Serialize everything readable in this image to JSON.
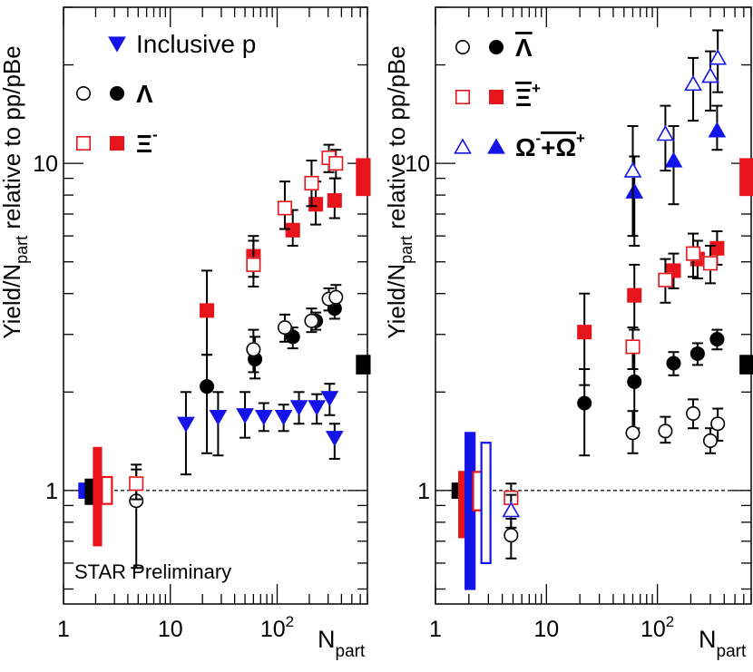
{
  "colors": {
    "black": "#000000",
    "red": "#e8141c",
    "blue": "#1414e8"
  },
  "chart_data": [
    {
      "type": "scatter",
      "id": "left",
      "xscale": "log",
      "yscale": "log",
      "xlim": [
        1,
        700
      ],
      "ylim": [
        0.45,
        30
      ],
      "ylabel_main": "Yield/N",
      "ylabel_sub": "part",
      "ylabel_rest": " relative to pp/pBe",
      "xlabel_main": "N",
      "xlabel_sub": "part",
      "x_ticks": [
        {
          "value": 1,
          "label": "1"
        },
        {
          "value": 10,
          "label": "10"
        },
        {
          "value": 100,
          "label": "10",
          "sup": "2"
        }
      ],
      "y_ticks": [
        {
          "value": 1,
          "label": "1"
        },
        {
          "value": 10,
          "label": "10"
        }
      ],
      "annotation": "STAR Preliminary",
      "legend": [
        {
          "label": "Inclusive p",
          "open_marker": null,
          "filled_marker": "tri-down",
          "color": "#1414e8",
          "overline": false,
          "sup": ""
        },
        {
          "label": "Λ",
          "open_marker": "circle",
          "filled_marker": "circle",
          "color": "#000000",
          "overline": false,
          "sup": ""
        },
        {
          "label": "Ξ",
          "open_marker": "square",
          "filled_marker": "square",
          "color": "#e8141c",
          "overline": false,
          "sup": "-"
        }
      ],
      "series": [
        {
          "name": "Inclusive p",
          "marker": "tri-down",
          "filled": true,
          "color": "#1414e8",
          "points": [
            [
              14,
              1.6,
              2.0,
              1.12
            ],
            [
              28,
              1.68,
              2.0,
              1.28
            ],
            [
              50,
              1.7,
              2.0,
              1.45
            ],
            [
              75,
              1.68,
              1.85,
              1.52
            ],
            [
              115,
              1.68,
              1.83,
              1.52
            ],
            [
              160,
              1.8,
              2.0,
              1.6
            ],
            [
              235,
              1.8,
              1.97,
              1.6
            ],
            [
              310,
              1.92,
              2.12,
              1.7
            ],
            [
              345,
              1.45,
              1.6,
              1.25
            ]
          ]
        },
        {
          "name": "Λ (filled)",
          "marker": "circle",
          "filled": true,
          "color": "#000000",
          "points": [
            [
              22,
              2.08,
              2.6,
              1.3
            ],
            [
              62,
              2.52,
              2.95,
              2.2
            ],
            [
              140,
              2.95,
              3.15,
              2.72
            ],
            [
              230,
              3.3,
              3.5,
              3.1
            ],
            [
              345,
              3.6,
              3.85,
              3.35
            ]
          ]
        },
        {
          "name": "Λ (open)",
          "marker": "circle",
          "filled": false,
          "color": "#000000",
          "points": [
            [
              4.8,
              0.93,
              1.2,
              0.58
            ],
            [
              60,
              2.7,
              3.1,
              2.3
            ],
            [
              118,
              3.15,
              3.45,
              2.85
            ],
            [
              210,
              3.3,
              3.6,
              3.05
            ],
            [
              305,
              3.85,
              4.15,
              3.55
            ],
            [
              355,
              3.9,
              4.25,
              3.6
            ]
          ]
        },
        {
          "name": "Ξ- (filled)",
          "marker": "square",
          "filled": true,
          "color": "#e8141c",
          "points": [
            [
              22,
              3.55,
              4.7,
              2.6
            ],
            [
              60,
              5.2,
              6.0,
              4.5
            ],
            [
              140,
              6.25,
              7.2,
              5.6
            ],
            [
              230,
              7.5,
              8.8,
              6.5
            ],
            [
              345,
              7.7,
              9.0,
              6.8
            ]
          ]
        },
        {
          "name": "Ξ- (open)",
          "marker": "square",
          "filled": false,
          "color": "#e8141c",
          "points": [
            [
              4.8,
              1.05,
              1.16,
              0.94
            ],
            [
              60,
              4.9,
              5.8,
              4.2
            ],
            [
              118,
              7.3,
              8.8,
              6.3
            ],
            [
              210,
              8.7,
              10.2,
              7.4
            ],
            [
              305,
              10.4,
              11.4,
              9.4
            ],
            [
              355,
              10.0,
              11.0,
              9.0
            ]
          ]
        }
      ],
      "systematics": [
        {
          "x": 1.55,
          "lo": 0.95,
          "hi": 1.05,
          "color": "#1414e8",
          "filled": true,
          "width": 1.0
        },
        {
          "x": 1.78,
          "lo": 0.91,
          "hi": 1.08,
          "color": "#000000",
          "filled": true,
          "width": 1.0
        },
        {
          "x": 2.08,
          "lo": 0.68,
          "hi": 1.35,
          "color": "#e8141c",
          "filled": true,
          "width": 0.8
        },
        {
          "x": 2.55,
          "lo": 0.91,
          "hi": 1.1,
          "color": "#e8141c",
          "filled": false,
          "width": 1.1
        },
        {
          "x": 640,
          "lo": 2.28,
          "hi": 2.58,
          "color": "#000000",
          "filled": true,
          "width": 1.4
        },
        {
          "x": 640,
          "lo": 8.0,
          "hi": 10.3,
          "color": "#e8141c",
          "filled": true,
          "width": 1.4
        }
      ]
    },
    {
      "type": "scatter",
      "id": "right",
      "xscale": "log",
      "yscale": "log",
      "xlim": [
        1,
        700
      ],
      "ylim": [
        0.45,
        30
      ],
      "ylabel_main": "Yield/N",
      "ylabel_sub": "part",
      "ylabel_rest": " relative to pp/pBe",
      "xlabel_main": "N",
      "xlabel_sub": "part",
      "x_ticks": [
        {
          "value": 1,
          "label": "1"
        },
        {
          "value": 10,
          "label": "10"
        },
        {
          "value": 100,
          "label": "10",
          "sup": "2"
        }
      ],
      "y_ticks": [
        {
          "value": 1,
          "label": "1"
        },
        {
          "value": 10,
          "label": "10"
        }
      ],
      "legend": [
        {
          "label": "Λ",
          "open_marker": "circle",
          "filled_marker": "circle",
          "color": "#000000",
          "overline": true,
          "sup": ""
        },
        {
          "label": "Ξ",
          "open_marker": "square",
          "filled_marker": "square",
          "color": "#e8141c",
          "overline": true,
          "sup": "+"
        },
        {
          "label": "Ω",
          "label2": "+Ω",
          "open_marker": "tri-up",
          "filled_marker": "tri-up",
          "color": "#1414e8",
          "overline": false,
          "sup": "-",
          "sup2": "+"
        }
      ],
      "series": [
        {
          "name": "anti-Λ (filled)",
          "marker": "circle",
          "filled": true,
          "color": "#000000",
          "points": [
            [
              22,
              1.85,
              2.35,
              1.28
            ],
            [
              62,
              2.15,
              2.8,
              1.55
            ],
            [
              140,
              2.45,
              2.65,
              2.25
            ],
            [
              230,
              2.62,
              2.82,
              2.42
            ],
            [
              345,
              2.9,
              3.1,
              2.7
            ]
          ]
        },
        {
          "name": "anti-Λ (open)",
          "marker": "circle",
          "filled": false,
          "color": "#000000",
          "points": [
            [
              4.8,
              0.73,
              0.82,
              0.62
            ],
            [
              60,
              1.5,
              1.75,
              1.3
            ],
            [
              118,
              1.52,
              1.68,
              1.4
            ],
            [
              210,
              1.72,
              1.9,
              1.55
            ],
            [
              300,
              1.42,
              1.55,
              1.3
            ],
            [
              350,
              1.6,
              1.78,
              1.42
            ]
          ]
        },
        {
          "name": "anti-Ξ+ (filled)",
          "marker": "square",
          "filled": true,
          "color": "#e8141c",
          "points": [
            [
              22,
              3.05,
              4.0,
              2.1
            ],
            [
              62,
              3.95,
              4.9,
              3.1
            ],
            [
              140,
              4.7,
              5.3,
              4.15
            ],
            [
              230,
              5.1,
              5.8,
              4.45
            ],
            [
              345,
              5.5,
              6.2,
              4.9
            ]
          ]
        },
        {
          "name": "anti-Ξ+ (open)",
          "marker": "square",
          "filled": false,
          "color": "#e8141c",
          "points": [
            [
              4.8,
              0.95,
              1.05,
              0.86
            ],
            [
              60,
              2.75,
              3.15,
              2.35
            ],
            [
              118,
              4.4,
              5.1,
              3.75
            ],
            [
              210,
              5.3,
              6.1,
              4.5
            ],
            [
              300,
              4.95,
              5.6,
              4.3
            ]
          ]
        },
        {
          "name": "Ω+anti-Ω (filled)",
          "marker": "tri-up",
          "filled": true,
          "color": "#1414e8",
          "points": [
            [
              62,
              8.2,
              10.5,
              5.6
            ],
            [
              140,
              10.2,
              13.0,
              7.5
            ],
            [
              345,
              12.6,
              15.0,
              11.0
            ]
          ]
        },
        {
          "name": "Ω+anti-Ω (open)",
          "marker": "tri-up",
          "filled": false,
          "color": "#1414e8",
          "points": [
            [
              4.8,
              0.87,
              0.97,
              0.77
            ],
            [
              60,
              9.5,
              13.0,
              6.0
            ],
            [
              118,
              12.3,
              15.0,
              9.5
            ],
            [
              210,
              17.5,
              21.0,
              13.5
            ],
            [
              300,
              18.5,
              22.0,
              14.5
            ],
            [
              350,
              21.0,
              25.5,
              16.5
            ]
          ]
        }
      ],
      "systematics": [
        {
          "x": 1.55,
          "lo": 0.95,
          "hi": 1.05,
          "color": "#000000",
          "filled": true,
          "width": 0.9
        },
        {
          "x": 1.78,
          "lo": 0.72,
          "hi": 1.14,
          "color": "#e8141c",
          "filled": true,
          "width": 0.9
        },
        {
          "x": 2.05,
          "lo": 0.5,
          "hi": 1.5,
          "color": "#1414e8",
          "filled": true,
          "width": 1.0
        },
        {
          "x": 2.4,
          "lo": 0.87,
          "hi": 1.14,
          "color": "#e8141c",
          "filled": false,
          "width": 1.0
        },
        {
          "x": 2.85,
          "lo": 0.6,
          "hi": 1.4,
          "color": "#1414e8",
          "filled": false,
          "width": 1.0
        },
        {
          "x": 640,
          "lo": 2.28,
          "hi": 2.58,
          "color": "#000000",
          "filled": true,
          "width": 1.4
        },
        {
          "x": 640,
          "lo": 8.0,
          "hi": 10.3,
          "color": "#e8141c",
          "filled": true,
          "width": 1.4
        }
      ]
    }
  ]
}
